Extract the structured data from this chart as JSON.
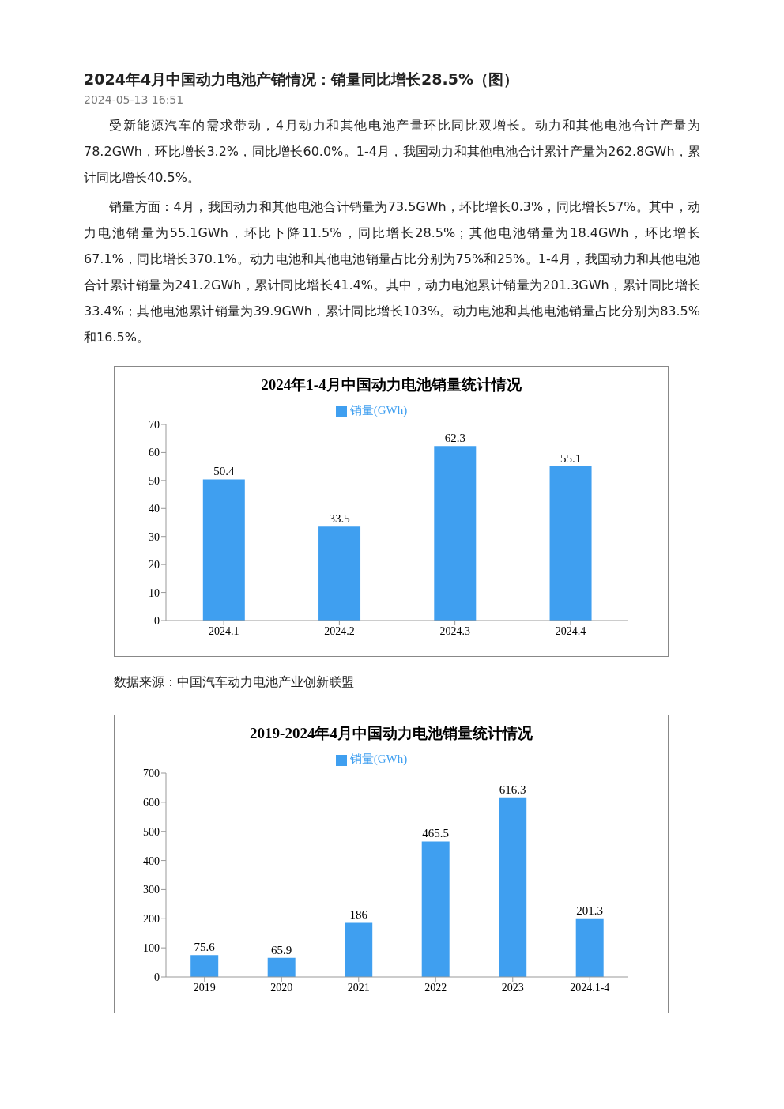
{
  "chart_data": [
    {
      "type": "bar",
      "title": "2024年1-4月中国动力电池销量统计情况",
      "categories": [
        "2024.1",
        "2024.2",
        "2024.3",
        "2024.4"
      ],
      "series": [
        {
          "name": "销量(GWh)",
          "color": "#3f9ff0",
          "values": [
            50.4,
            33.5,
            62.3,
            55.1
          ]
        }
      ],
      "ylim": [
        0,
        70
      ],
      "yticks": [
        0,
        10,
        20,
        30,
        40,
        50,
        60,
        70
      ],
      "data_labels": true,
      "legend": "top",
      "annotations": [
        "2024年4月中国动力电池产销情况：销量同比增长28.5%（图）",
        "2024-05-13 16:51",
        "受新能源汽车的需求带动，4月动力和其他电池产量环比同比双增长。动力和其他电池合计产量为78.2GWh，环比增长3.2%，同比增长60.0%。1-4月，我国动力和其他电池合计累计产量为262.8GWh，累计同比增长40.5%。",
        "销量方面：4月，我国动力和其他电池合计销量为73.5GWh，环比增长0.3%，同比增长57%。其中，动力电池销量为55.1GWh，环比下降11.5%，同比增长28.5%；其他电池销量为18.4GWh，环比增长67.1%，同比增长370.1%。动力电池和其他电池销量占比分别为75%和25%。1-4月，我国动力和其他电池合计累计销量为241.2GWh，累计同比增长41.4%。其中，动力电池累计销量为201.3GWh，累计同比增长33.4%；其他电池累计销量为39.9GWh，累计同比增长103%。动力电池和其他电池销量占比分别为83.5%和16.5%。",
        "数据来源：中国汽车动力电池产业创新联盟"
      ]
    },
    {
      "type": "bar",
      "title": "2019-2024年4月中国动力电池销量统计情况",
      "categories": [
        "2019",
        "2020",
        "2021",
        "2022",
        "2023",
        "2024.1-4"
      ],
      "series": [
        {
          "name": "销量(GWh)",
          "color": "#3f9ff0",
          "values": [
            75.6,
            65.9,
            186,
            465.5,
            616.3,
            201.3
          ]
        }
      ],
      "ylim": [
        0,
        700
      ],
      "yticks": [
        0,
        100,
        200,
        300,
        400,
        500,
        600,
        700
      ],
      "data_labels": true,
      "legend": "top"
    }
  ]
}
